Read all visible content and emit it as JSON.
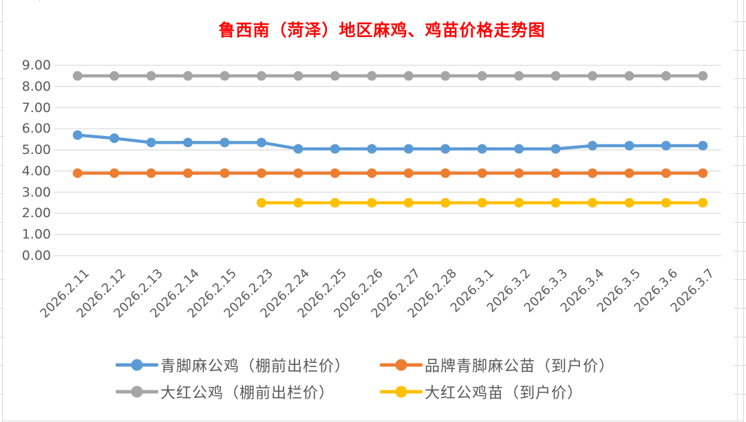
{
  "title": {
    "text": "鲁西南（菏泽）地区麻鸡、鸡苗价格走势图",
    "color": "#FF0000"
  },
  "chart_data": {
    "type": "line",
    "title": "鲁西南（菏泽）地区麻鸡、鸡苗价格走势图",
    "categories": [
      "2026.2.11",
      "2026.2.12",
      "2026.2.13",
      "2026.2.14",
      "2026.2.15",
      "2026.2.23",
      "2026.2.24",
      "2026.2.25",
      "2026.2.26",
      "2026.2.27",
      "2026.2.28",
      "2026.3.1",
      "2026.3.2",
      "2026.3.3",
      "2026.3.4",
      "2026.3.5",
      "2026.3.6",
      "2026.3.7"
    ],
    "series": [
      {
        "name": "青脚麻公鸡（棚前出栏价）",
        "color": "#5B9BD5",
        "values": [
          5.7,
          5.55,
          5.35,
          5.35,
          5.35,
          5.35,
          5.05,
          5.05,
          5.05,
          5.05,
          5.05,
          5.05,
          5.05,
          5.05,
          5.2,
          5.2,
          5.2,
          5.2
        ]
      },
      {
        "name": "品牌青脚麻公苗（到户价）",
        "color": "#ED7D31",
        "values": [
          3.9,
          3.9,
          3.9,
          3.9,
          3.9,
          3.9,
          3.9,
          3.9,
          3.9,
          3.9,
          3.9,
          3.9,
          3.9,
          3.9,
          3.9,
          3.9,
          3.9,
          3.9
        ]
      },
      {
        "name": "大红公鸡（棚前出栏价）",
        "color": "#A5A5A5",
        "values": [
          8.5,
          8.5,
          8.5,
          8.5,
          8.5,
          8.5,
          8.5,
          8.5,
          8.5,
          8.5,
          8.5,
          8.5,
          8.5,
          8.5,
          8.5,
          8.5,
          8.5,
          8.5
        ]
      },
      {
        "name": "大红公鸡苗（到户价）",
        "color": "#FFC000",
        "values": [
          null,
          null,
          null,
          null,
          null,
          2.5,
          2.5,
          2.5,
          2.5,
          2.5,
          2.5,
          2.5,
          2.5,
          2.5,
          2.5,
          2.5,
          2.5,
          2.5
        ]
      }
    ],
    "xlabel": "",
    "ylabel": "",
    "ylim": [
      0,
      9
    ],
    "ytick_step": 1,
    "y_tick_labels": [
      "9.00",
      "8.00",
      "7.00",
      "6.00",
      "5.00",
      "4.00",
      "3.00",
      "2.00",
      "1.00",
      "0.00"
    ],
    "grid": true,
    "gridline_color": "#D9D9D9",
    "axis_label_color": "#595959",
    "legend_position": "bottom",
    "marker": "circle"
  }
}
